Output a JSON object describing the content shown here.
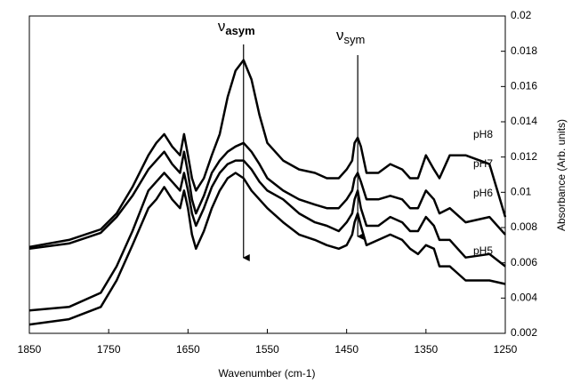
{
  "chart_data": {
    "type": "line",
    "xlabel": "Wavenumber (cm-1)",
    "ylabel": "Absorbance (Arb. units)",
    "x": [
      1850,
      1800,
      1760,
      1740,
      1720,
      1700,
      1690,
      1680,
      1670,
      1660,
      1655,
      1650,
      1645,
      1640,
      1630,
      1620,
      1610,
      1600,
      1590,
      1580,
      1570,
      1560,
      1550,
      1530,
      1510,
      1490,
      1475,
      1460,
      1450,
      1443,
      1440,
      1436,
      1432,
      1425,
      1410,
      1395,
      1380,
      1370,
      1360,
      1350,
      1340,
      1333,
      1320,
      1300,
      1270,
      1250
    ],
    "series": [
      {
        "name": "pH8",
        "color": "#000000",
        "values": [
          0.0069,
          0.0073,
          0.0079,
          0.0088,
          0.0103,
          0.0121,
          0.0128,
          0.0133,
          0.0126,
          0.0121,
          0.0133,
          0.0121,
          0.0108,
          0.0101,
          0.0108,
          0.0121,
          0.0133,
          0.0154,
          0.0169,
          0.0175,
          0.0164,
          0.0144,
          0.0128,
          0.0118,
          0.0113,
          0.0111,
          0.0108,
          0.0108,
          0.0113,
          0.0118,
          0.0128,
          0.0131,
          0.0126,
          0.0111,
          0.0111,
          0.0116,
          0.0113,
          0.0108,
          0.0108,
          0.0121,
          0.0113,
          0.0108,
          0.0121,
          0.0121,
          0.0116,
          0.0086
        ]
      },
      {
        "name": "pH7",
        "color": "#000000",
        "values": [
          0.0068,
          0.0071,
          0.0077,
          0.0086,
          0.0098,
          0.0113,
          0.0118,
          0.0123,
          0.0116,
          0.0111,
          0.0123,
          0.0111,
          0.0096,
          0.0088,
          0.0098,
          0.0111,
          0.0118,
          0.0123,
          0.0126,
          0.0128,
          0.0123,
          0.0116,
          0.0108,
          0.0101,
          0.0096,
          0.0093,
          0.0091,
          0.0091,
          0.0096,
          0.0101,
          0.0108,
          0.0111,
          0.0106,
          0.0096,
          0.0096,
          0.0098,
          0.0096,
          0.0091,
          0.0091,
          0.0101,
          0.0096,
          0.0088,
          0.0091,
          0.0083,
          0.0086,
          0.0076
        ]
      },
      {
        "name": "pH6",
        "color": "#000000",
        "values": [
          0.0033,
          0.0035,
          0.0043,
          0.0058,
          0.0078,
          0.0101,
          0.0106,
          0.0111,
          0.0106,
          0.0101,
          0.0111,
          0.0101,
          0.0088,
          0.0081,
          0.0091,
          0.0103,
          0.0111,
          0.0116,
          0.0118,
          0.0118,
          0.0113,
          0.0106,
          0.0101,
          0.0096,
          0.0088,
          0.0083,
          0.0081,
          0.0078,
          0.0083,
          0.0088,
          0.0096,
          0.0101,
          0.0091,
          0.0081,
          0.0081,
          0.0086,
          0.0083,
          0.0078,
          0.0078,
          0.0086,
          0.0081,
          0.0073,
          0.0073,
          0.0063,
          0.0065,
          0.0058
        ]
      },
      {
        "name": "pH5",
        "color": "#000000",
        "values": [
          0.0025,
          0.0028,
          0.0035,
          0.005,
          0.007,
          0.0091,
          0.0096,
          0.0103,
          0.0096,
          0.0091,
          0.0101,
          0.0091,
          0.0076,
          0.0068,
          0.0078,
          0.0091,
          0.0101,
          0.0108,
          0.0111,
          0.0108,
          0.0101,
          0.0096,
          0.0091,
          0.0083,
          0.0076,
          0.0073,
          0.007,
          0.0068,
          0.007,
          0.0076,
          0.0083,
          0.0088,
          0.0081,
          0.007,
          0.0073,
          0.0076,
          0.0073,
          0.0068,
          0.0065,
          0.007,
          0.0068,
          0.0058,
          0.0058,
          0.005,
          0.005,
          0.0048
        ]
      }
    ],
    "annotations": [
      {
        "symbol": "ν",
        "subscript": "asym",
        "x": 1580
      },
      {
        "symbol": "ν",
        "subscript": "sym",
        "x": 1436
      }
    ],
    "xlim": [
      1850,
      1250
    ],
    "xticks": [
      1850,
      1750,
      1650,
      1550,
      1450,
      1350,
      1250
    ],
    "ylim": [
      0.002,
      0.02
    ],
    "yticks": [
      0.002,
      0.004,
      0.006,
      0.008,
      0.01,
      0.012,
      0.014,
      0.016,
      0.018,
      0.02
    ]
  }
}
